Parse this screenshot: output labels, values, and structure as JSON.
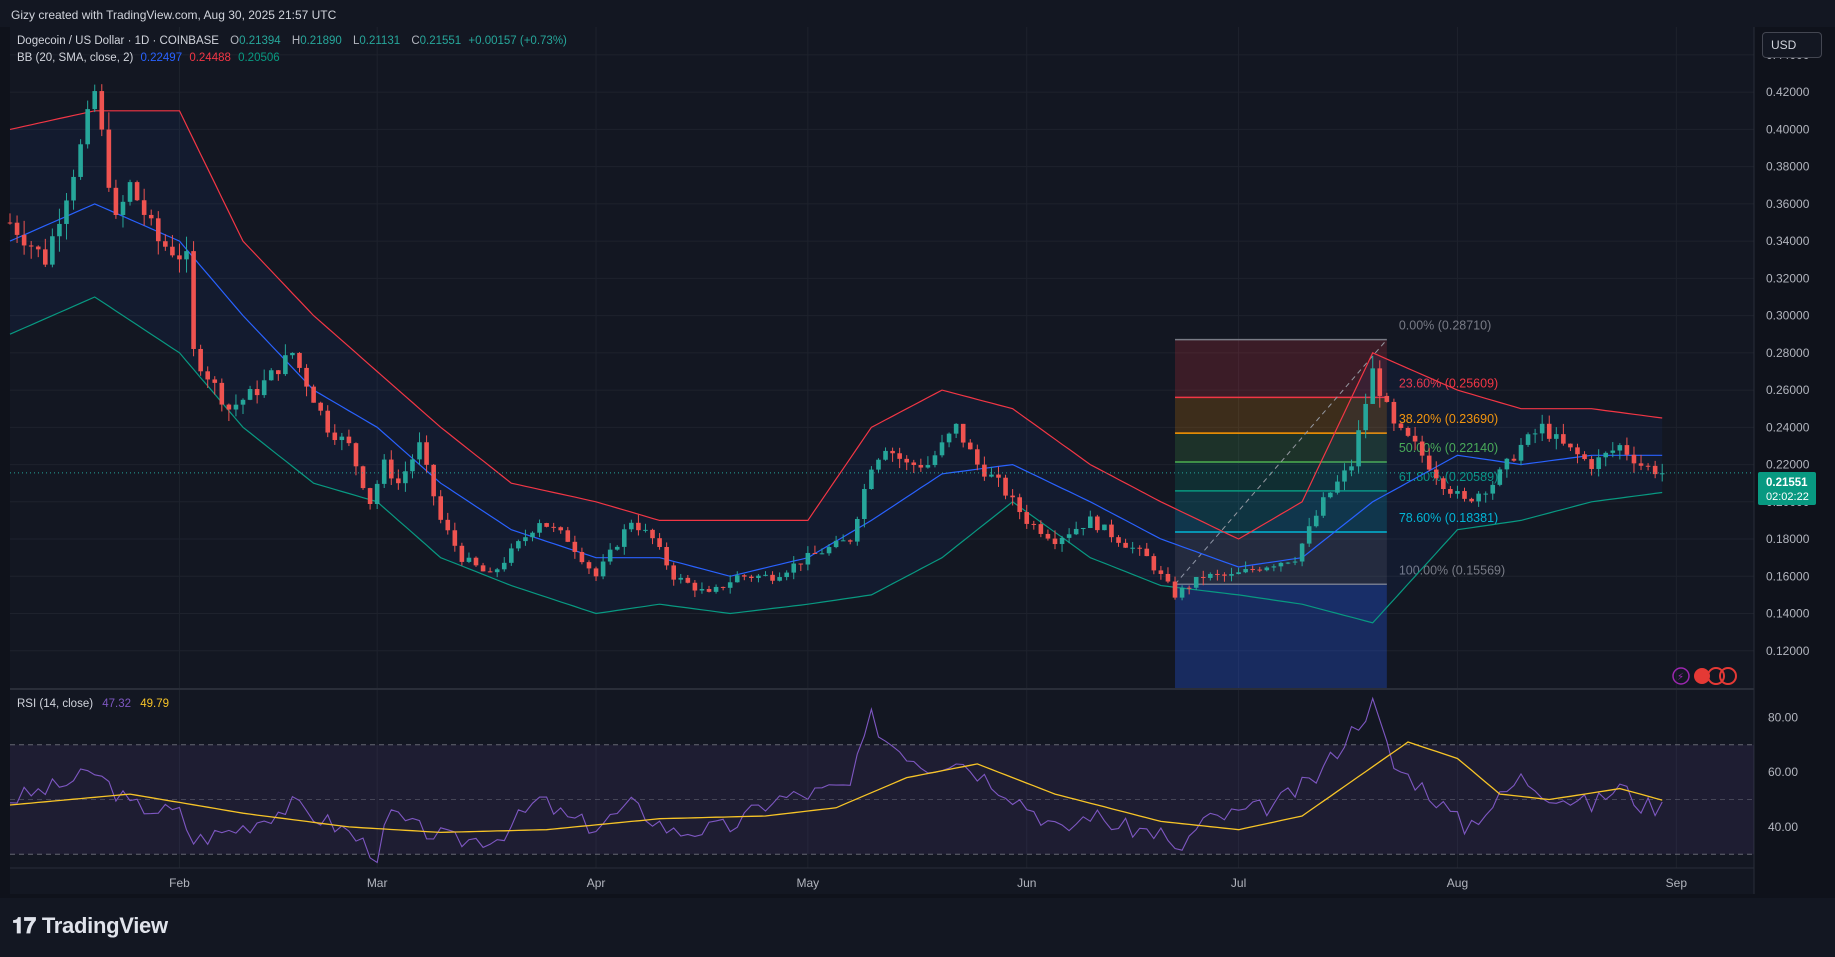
{
  "header": {
    "created_by": "Gizy created with TradingView.com, Aug 30, 2025 21:57 UTC"
  },
  "legend": {
    "symbol": "Dogecoin / US Dollar · 1D · COINBASE",
    "open_label": "O",
    "open": "0.21394",
    "high_label": "H",
    "high": "0.21890",
    "low_label": "L",
    "low": "0.21131",
    "close_label": "C",
    "close": "0.21551",
    "change": "+0.00157 (+0.73%)",
    "bb_label": "BB (20, SMA, close, 2)",
    "bb_basis": "0.22497",
    "bb_upper": "0.24488",
    "bb_lower": "0.20506",
    "rsi_label": "RSI (14, close)",
    "rsi_value": "47.32",
    "rsi_ma": "49.79"
  },
  "currency_button": "USD",
  "price_tag": {
    "price": "0.21551",
    "countdown": "02:02:22"
  },
  "brand": "TradingView",
  "colors": {
    "up": "#26a69a",
    "down": "#ef5350",
    "bb_basis": "#2962ff",
    "bb_upper": "#f23645",
    "bb_lower": "#089981",
    "rsi": "#7e57c2",
    "rsi_ma": "#f7c427"
  },
  "chart_data": {
    "type": "candlestick",
    "title": "Dogecoin / US Dollar · 1D · COINBASE",
    "price_axis": {
      "ticks": [
        "0.44000",
        "0.42000",
        "0.40000",
        "0.38000",
        "0.36000",
        "0.34000",
        "0.32000",
        "0.30000",
        "0.28000",
        "0.26000",
        "0.24000",
        "0.22000",
        "0.20000",
        "0.18000",
        "0.16000",
        "0.14000",
        "0.12000"
      ],
      "range": [
        0.1,
        0.455
      ]
    },
    "time_axis": {
      "labels": [
        "Feb",
        "Mar",
        "Apr",
        "May",
        "Jun",
        "Jul",
        "Aug",
        "Sep"
      ],
      "label_dates": [
        "2025-02-01",
        "2025-03-01",
        "2025-04-01",
        "2025-05-01",
        "2025-06-01",
        "2025-07-01",
        "2025-08-01",
        "2025-09-01"
      ],
      "range": [
        "2025-01-08",
        "2025-09-12"
      ]
    },
    "price_anchors": [
      [
        "2025-01-08",
        0.35
      ],
      [
        "2025-01-13",
        0.33
      ],
      [
        "2025-01-18",
        0.39
      ],
      [
        "2025-01-20",
        0.42
      ],
      [
        "2025-01-23",
        0.35
      ],
      [
        "2025-01-25",
        0.37
      ],
      [
        "2025-01-29",
        0.34
      ],
      [
        "2025-02-02",
        0.33
      ],
      [
        "2025-02-03",
        0.28
      ],
      [
        "2025-02-08",
        0.25
      ],
      [
        "2025-02-12",
        0.26
      ],
      [
        "2025-02-17",
        0.28
      ],
      [
        "2025-02-22",
        0.24
      ],
      [
        "2025-02-25",
        0.23
      ],
      [
        "2025-02-28",
        0.2
      ],
      [
        "2025-03-02",
        0.22
      ],
      [
        "2025-03-04",
        0.21
      ],
      [
        "2025-03-07",
        0.23
      ],
      [
        "2025-03-10",
        0.19
      ],
      [
        "2025-03-13",
        0.17
      ],
      [
        "2025-03-17",
        0.16
      ],
      [
        "2025-03-24",
        0.19
      ],
      [
        "2025-03-28",
        0.18
      ],
      [
        "2025-04-01",
        0.16
      ],
      [
        "2025-04-06",
        0.19
      ],
      [
        "2025-04-09",
        0.18
      ],
      [
        "2025-04-12",
        0.16
      ],
      [
        "2025-04-17",
        0.15
      ],
      [
        "2025-04-21",
        0.16
      ],
      [
        "2025-04-26",
        0.16
      ],
      [
        "2025-05-01",
        0.17
      ],
      [
        "2025-05-07",
        0.18
      ],
      [
        "2025-05-10",
        0.22
      ],
      [
        "2025-05-12",
        0.23
      ],
      [
        "2025-05-15",
        0.22
      ],
      [
        "2025-05-18",
        0.22
      ],
      [
        "2025-05-22",
        0.24
      ],
      [
        "2025-05-25",
        0.22
      ],
      [
        "2025-05-28",
        0.21
      ],
      [
        "2025-06-01",
        0.19
      ],
      [
        "2025-06-05",
        0.18
      ],
      [
        "2025-06-10",
        0.19
      ],
      [
        "2025-06-14",
        0.18
      ],
      [
        "2025-06-18",
        0.17
      ],
      [
        "2025-06-22",
        0.15
      ],
      [
        "2025-06-26",
        0.16
      ],
      [
        "2025-06-30",
        0.16
      ],
      [
        "2025-07-04",
        0.165
      ],
      [
        "2025-07-09",
        0.17
      ],
      [
        "2025-07-13",
        0.2
      ],
      [
        "2025-07-17",
        0.22
      ],
      [
        "2025-07-20",
        0.27
      ],
      [
        "2025-07-23",
        0.24
      ],
      [
        "2025-07-26",
        0.23
      ],
      [
        "2025-07-30",
        0.21
      ],
      [
        "2025-08-02",
        0.2
      ],
      [
        "2025-08-06",
        0.21
      ],
      [
        "2025-08-10",
        0.23
      ],
      [
        "2025-08-13",
        0.24
      ],
      [
        "2025-08-16",
        0.23
      ],
      [
        "2025-08-20",
        0.22
      ],
      [
        "2025-08-24",
        0.23
      ],
      [
        "2025-08-27",
        0.22
      ],
      [
        "2025-08-30",
        0.2155
      ]
    ],
    "bollinger": {
      "upper": [
        [
          "2025-01-08",
          0.4
        ],
        [
          "2025-01-20",
          0.41
        ],
        [
          "2025-02-01",
          0.41
        ],
        [
          "2025-02-10",
          0.34
        ],
        [
          "2025-02-20",
          0.3
        ],
        [
          "2025-03-01",
          0.27
        ],
        [
          "2025-03-10",
          0.24
        ],
        [
          "2025-03-20",
          0.21
        ],
        [
          "2025-04-01",
          0.2
        ],
        [
          "2025-04-10",
          0.19
        ],
        [
          "2025-04-20",
          0.19
        ],
        [
          "2025-05-01",
          0.19
        ],
        [
          "2025-05-10",
          0.24
        ],
        [
          "2025-05-20",
          0.26
        ],
        [
          "2025-05-30",
          0.25
        ],
        [
          "2025-06-10",
          0.22
        ],
        [
          "2025-06-20",
          0.2
        ],
        [
          "2025-07-01",
          0.18
        ],
        [
          "2025-07-10",
          0.2
        ],
        [
          "2025-07-20",
          0.28
        ],
        [
          "2025-08-01",
          0.26
        ],
        [
          "2025-08-10",
          0.25
        ],
        [
          "2025-08-20",
          0.25
        ],
        [
          "2025-08-30",
          0.245
        ]
      ],
      "basis": [
        [
          "2025-01-08",
          0.34
        ],
        [
          "2025-01-20",
          0.36
        ],
        [
          "2025-02-01",
          0.34
        ],
        [
          "2025-02-10",
          0.3
        ],
        [
          "2025-02-20",
          0.26
        ],
        [
          "2025-03-01",
          0.24
        ],
        [
          "2025-03-10",
          0.21
        ],
        [
          "2025-03-20",
          0.185
        ],
        [
          "2025-04-01",
          0.17
        ],
        [
          "2025-04-10",
          0.17
        ],
        [
          "2025-04-20",
          0.16
        ],
        [
          "2025-05-01",
          0.17
        ],
        [
          "2025-05-10",
          0.19
        ],
        [
          "2025-05-20",
          0.215
        ],
        [
          "2025-05-30",
          0.22
        ],
        [
          "2025-06-10",
          0.2
        ],
        [
          "2025-06-20",
          0.18
        ],
        [
          "2025-07-01",
          0.165
        ],
        [
          "2025-07-10",
          0.17
        ],
        [
          "2025-07-20",
          0.2
        ],
        [
          "2025-08-01",
          0.225
        ],
        [
          "2025-08-10",
          0.22
        ],
        [
          "2025-08-20",
          0.225
        ],
        [
          "2025-08-30",
          0.225
        ]
      ],
      "lower": [
        [
          "2025-01-08",
          0.29
        ],
        [
          "2025-01-20",
          0.31
        ],
        [
          "2025-02-01",
          0.28
        ],
        [
          "2025-02-10",
          0.24
        ],
        [
          "2025-02-20",
          0.21
        ],
        [
          "2025-03-01",
          0.2
        ],
        [
          "2025-03-10",
          0.17
        ],
        [
          "2025-03-20",
          0.155
        ],
        [
          "2025-04-01",
          0.14
        ],
        [
          "2025-04-10",
          0.145
        ],
        [
          "2025-04-20",
          0.14
        ],
        [
          "2025-05-01",
          0.145
        ],
        [
          "2025-05-10",
          0.15
        ],
        [
          "2025-05-20",
          0.17
        ],
        [
          "2025-05-30",
          0.2
        ],
        [
          "2025-06-10",
          0.17
        ],
        [
          "2025-06-20",
          0.155
        ],
        [
          "2025-07-01",
          0.15
        ],
        [
          "2025-07-10",
          0.145
        ],
        [
          "2025-07-20",
          0.135
        ],
        [
          "2025-08-01",
          0.185
        ],
        [
          "2025-08-10",
          0.19
        ],
        [
          "2025-08-20",
          0.2
        ],
        [
          "2025-08-30",
          0.205
        ]
      ]
    },
    "fibonacci": {
      "start": "2025-06-22",
      "end": "2025-07-22",
      "levels": [
        {
          "label": "0.00% (0.28710)",
          "price": 0.2871,
          "color": "#787b86"
        },
        {
          "label": "23.60% (0.25609)",
          "price": 0.25609,
          "color": "#f23645"
        },
        {
          "label": "38.20% (0.23690)",
          "price": 0.2369,
          "color": "#ff9800"
        },
        {
          "label": "50.00% (0.22140)",
          "price": 0.2214,
          "color": "#4caf50"
        },
        {
          "label": "61.80% (0.20589)",
          "price": 0.20589,
          "color": "#089981"
        },
        {
          "label": "78.60% (0.18381)",
          "price": 0.18381,
          "color": "#00bcd4"
        },
        {
          "label": "100.00% (0.15569)",
          "price": 0.15569,
          "color": "#787b86"
        }
      ]
    },
    "rsi": {
      "ticks": [
        "80.00",
        "60.00",
        "40.00"
      ],
      "range": [
        25,
        90
      ],
      "bands": [
        30,
        50,
        70
      ],
      "anchors": [
        [
          "2025-01-08",
          50
        ],
        [
          "2025-01-15",
          55
        ],
        [
          "2025-01-20",
          60
        ],
        [
          "2025-01-25",
          48
        ],
        [
          "2025-02-01",
          45
        ],
        [
          "2025-02-03",
          35
        ],
        [
          "2025-02-10",
          40
        ],
        [
          "2025-02-17",
          48
        ],
        [
          "2025-02-25",
          38
        ],
        [
          "2025-03-01",
          30
        ],
        [
          "2025-03-03",
          45
        ],
        [
          "2025-03-06",
          40
        ],
        [
          "2025-03-12",
          35
        ],
        [
          "2025-03-18",
          36
        ],
        [
          "2025-03-24",
          50
        ],
        [
          "2025-03-28",
          43
        ],
        [
          "2025-04-01",
          40
        ],
        [
          "2025-04-06",
          48
        ],
        [
          "2025-04-12",
          38
        ],
        [
          "2025-04-20",
          40
        ],
        [
          "2025-04-26",
          50
        ],
        [
          "2025-05-01",
          52
        ],
        [
          "2025-05-07",
          55
        ],
        [
          "2025-05-10",
          80
        ],
        [
          "2025-05-12",
          72
        ],
        [
          "2025-05-18",
          62
        ],
        [
          "2025-05-22",
          65
        ],
        [
          "2025-05-28",
          55
        ],
        [
          "2025-06-01",
          48
        ],
        [
          "2025-06-06",
          38
        ],
        [
          "2025-06-10",
          45
        ],
        [
          "2025-06-14",
          40
        ],
        [
          "2025-06-20",
          38
        ],
        [
          "2025-06-22",
          30
        ],
        [
          "2025-06-26",
          42
        ],
        [
          "2025-07-01",
          45
        ],
        [
          "2025-07-06",
          48
        ],
        [
          "2025-07-12",
          58
        ],
        [
          "2025-07-17",
          75
        ],
        [
          "2025-07-20",
          85
        ],
        [
          "2025-07-23",
          62
        ],
        [
          "2025-07-27",
          55
        ],
        [
          "2025-08-02",
          40
        ],
        [
          "2025-08-06",
          48
        ],
        [
          "2025-08-10",
          58
        ],
        [
          "2025-08-14",
          52
        ],
        [
          "2025-08-20",
          48
        ],
        [
          "2025-08-24",
          55
        ],
        [
          "2025-08-27",
          48
        ],
        [
          "2025-08-30",
          47.3
        ]
      ],
      "ma_anchors": [
        [
          "2025-01-08",
          48
        ],
        [
          "2025-01-25",
          52
        ],
        [
          "2025-02-10",
          45
        ],
        [
          "2025-02-25",
          40
        ],
        [
          "2025-03-10",
          38
        ],
        [
          "2025-03-25",
          39
        ],
        [
          "2025-04-10",
          43
        ],
        [
          "2025-04-25",
          44
        ],
        [
          "2025-05-05",
          47
        ],
        [
          "2025-05-15",
          58
        ],
        [
          "2025-05-25",
          63
        ],
        [
          "2025-06-05",
          52
        ],
        [
          "2025-06-20",
          42
        ],
        [
          "2025-07-01",
          39
        ],
        [
          "2025-07-10",
          44
        ],
        [
          "2025-07-20",
          62
        ],
        [
          "2025-07-25",
          71
        ],
        [
          "2025-08-01",
          65
        ],
        [
          "2025-08-07",
          52
        ],
        [
          "2025-08-14",
          50
        ],
        [
          "2025-08-24",
          54
        ],
        [
          "2025-08-30",
          49.8
        ]
      ]
    }
  }
}
